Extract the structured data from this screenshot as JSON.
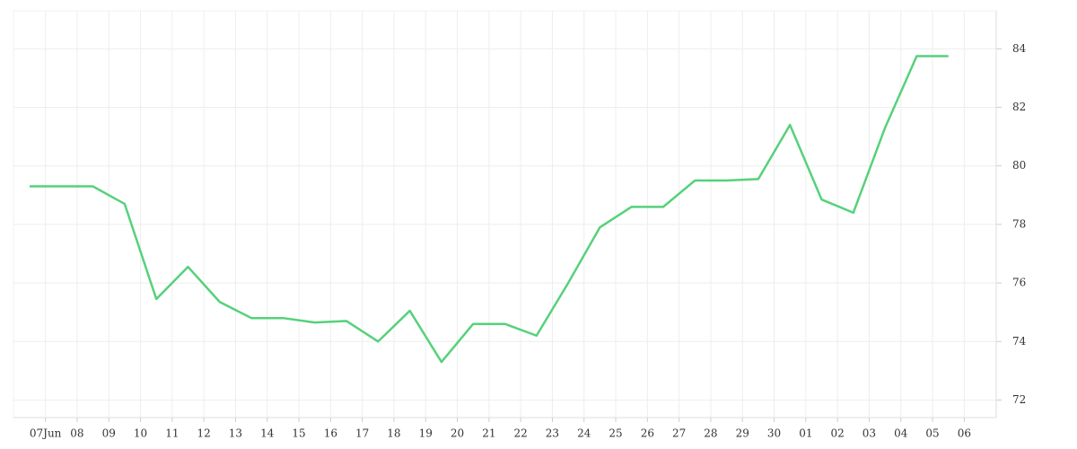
{
  "chart_data": {
    "type": "line",
    "categories": [
      "07Jun",
      "08",
      "09",
      "10",
      "11",
      "12",
      "13",
      "14",
      "15",
      "16",
      "17",
      "18",
      "19",
      "20",
      "21",
      "22",
      "23",
      "24",
      "25",
      "26",
      "27",
      "28",
      "29",
      "30",
      "01",
      "02",
      "03",
      "04",
      "05",
      "06"
    ],
    "series": [
      {
        "color": "#56d17b",
        "values": [
          79.3,
          79.3,
          79.3,
          78.7,
          75.45,
          76.55,
          75.35,
          74.8,
          74.8,
          74.65,
          74.7,
          74.0,
          75.05,
          73.3,
          74.6,
          74.6,
          74.2,
          76.0,
          77.9,
          78.6,
          78.6,
          79.5,
          79.5,
          79.55,
          81.4,
          78.85,
          78.4,
          81.3,
          83.75,
          83.75
        ]
      }
    ],
    "ylim": [
      71.4,
      85.3
    ],
    "yticks": [
      72,
      74,
      76,
      78,
      80,
      82,
      84
    ],
    "grid": true
  }
}
